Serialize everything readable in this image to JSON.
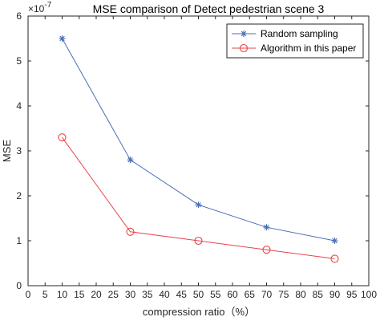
{
  "chart_data": {
    "type": "line",
    "title": "MSE comparison of Detect pedestrian scene 3",
    "xlabel": "compression ratio（%）",
    "ylabel": "MSE",
    "xlim": [
      0,
      100
    ],
    "ylim": [
      0,
      6
    ],
    "xticks": [
      "0",
      "5",
      "10",
      "15",
      "20",
      "25",
      "30",
      "35",
      "40",
      "45",
      "50",
      "55",
      "60",
      "65",
      "70",
      "75",
      "80",
      "85",
      "90",
      "95",
      "100"
    ],
    "yticks": [
      "0",
      "1",
      "2",
      "3",
      "4",
      "5",
      "6"
    ],
    "y_multiplier_base": "×10",
    "y_multiplier_exp": "-7",
    "x": [
      10,
      30,
      50,
      70,
      90
    ],
    "series": [
      {
        "name": "Random sampling",
        "values": [
          5.5,
          2.8,
          1.8,
          1.3,
          1.0
        ],
        "color": "#4a6fb5",
        "marker": "asterisk"
      },
      {
        "name": "Algorithm in this paper",
        "values": [
          3.3,
          1.2,
          1.0,
          0.8,
          0.6
        ],
        "color": "#e8434b",
        "marker": "circle"
      }
    ],
    "grid": false,
    "legend_position": "top-right"
  }
}
